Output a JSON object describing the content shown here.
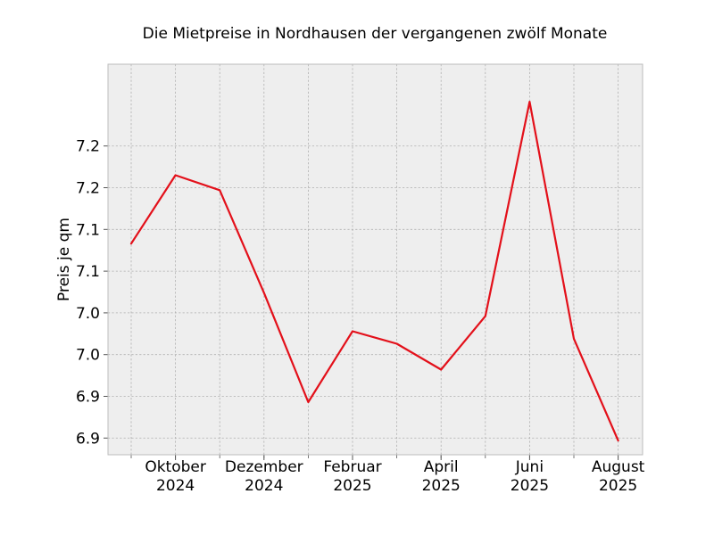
{
  "chart_data": {
    "type": "line",
    "title": "Die Mietpreise in Nordhausen der vergangenen zwölf Monate",
    "xlabel": "",
    "ylabel": "Preis je qm",
    "x": [
      "2024-09",
      "2024-10",
      "2024-11",
      "2024-12",
      "2025-01",
      "2025-02",
      "2025-03",
      "2025-04",
      "2025-05",
      "2025-06",
      "2025-07",
      "2025-08"
    ],
    "xticks": [
      {
        "x": "2024-10",
        "line1": "Oktober",
        "line2": "2024"
      },
      {
        "x": "2024-12",
        "line1": "Dezember",
        "line2": "2024"
      },
      {
        "x": "2025-02",
        "line1": "Februar",
        "line2": "2025"
      },
      {
        "x": "2025-04",
        "line1": "April",
        "line2": "2025"
      },
      {
        "x": "2025-06",
        "line1": "Juni",
        "line2": "2025"
      },
      {
        "x": "2025-08",
        "line1": "August",
        "line2": "2025"
      }
    ],
    "series": [
      {
        "values": [
          7.108,
          7.19,
          7.172,
          7.049,
          6.918,
          7.003,
          6.988,
          6.957,
          7.021,
          7.278,
          6.994,
          6.872
        ]
      }
    ],
    "ylim": [
      6.855,
      7.323
    ],
    "yticks": [
      6.875,
      6.925,
      6.975,
      7.025,
      7.075,
      7.125,
      7.175,
      7.225
    ],
    "ytick_labels": [
      "6.9",
      "6.9",
      "7.0",
      "7.0",
      "7.1",
      "7.1",
      "7.2",
      "7.2"
    ],
    "grid": true,
    "colors": {
      "line": "#e3101a",
      "plot_bg": "#eeeeee",
      "grid": "#b0b0b0",
      "frame": "#bcbcbc"
    }
  }
}
